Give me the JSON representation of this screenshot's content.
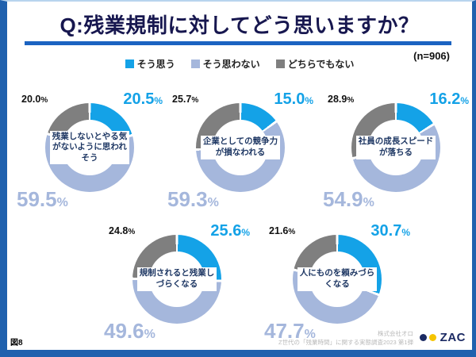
{
  "header": {
    "title": "Q:残業規制に対してどう思いますか？",
    "sample_size": "(n=906)"
  },
  "unit": "%",
  "colors": {
    "agree": "#14A2E7",
    "disagree": "#A5B7DC",
    "neither": "#7F7F7F",
    "frame": "#2061AE",
    "underline": "#1B63C1",
    "title_text": "#17174F"
  },
  "legend": {
    "items": [
      {
        "label": "そう思う",
        "color_key": "agree"
      },
      {
        "label": "そう思わない",
        "color_key": "disagree"
      },
      {
        "label": "どちらでもない",
        "color_key": "neither"
      }
    ]
  },
  "chart_data": {
    "type": "pie",
    "subtype": "donut",
    "title": "Q:残業規制に対してどう思いますか？",
    "sample_size": 906,
    "legend_position": "top",
    "categories": [
      "そう思う",
      "そう思わない",
      "どちらでもない"
    ],
    "charts": [
      {
        "label": "残業しないとやる気がないように思われそう",
        "values": [
          20.5,
          59.5,
          20.0
        ],
        "display": {
          "agree": "20.5",
          "disagree": "59.5",
          "neither": "20.0"
        }
      },
      {
        "label": "企業としての競争力が損なわれる",
        "values": [
          15.0,
          59.3,
          25.7
        ],
        "display": {
          "agree": "15.0",
          "disagree": "59.3",
          "neither": "25.7"
        }
      },
      {
        "label": "社員の成長スピードが落ちる",
        "values": [
          16.2,
          54.9,
          28.9
        ],
        "display": {
          "agree": "16.2",
          "disagree": "54.9",
          "neither": "28.9"
        }
      },
      {
        "label": "規制されると残業しづらくなる",
        "values": [
          25.6,
          49.6,
          24.8
        ],
        "display": {
          "agree": "25.6",
          "disagree": "49.6",
          "neither": "24.8"
        }
      },
      {
        "label": "人にものを頼みづらくなる",
        "values": [
          30.7,
          47.7,
          21.6
        ],
        "display": {
          "agree": "30.7",
          "disagree": "47.7",
          "neither": "21.6"
        }
      }
    ]
  },
  "footer": {
    "figure_label": "図8",
    "company": "株式会社オロ",
    "survey": "Z世代の「残業時間」に関する実態調査2023 第1弾",
    "logo_text": "ZAC"
  }
}
